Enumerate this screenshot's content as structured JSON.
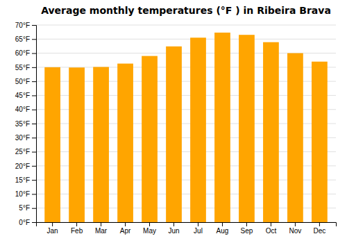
{
  "chart_data": {
    "type": "bar",
    "title": "Average monthly temperatures (°F ) in Ribeira Brava",
    "categories": [
      "Jan",
      "Feb",
      "Mar",
      "Apr",
      "May",
      "Jun",
      "Jul",
      "Aug",
      "Sep",
      "Oct",
      "Nov",
      "Dec"
    ],
    "values": [
      55.0,
      54.9,
      55.1,
      56.3,
      59.0,
      62.4,
      65.5,
      67.3,
      66.5,
      63.9,
      60.0,
      57.0
    ],
    "color": "#FFA500",
    "ylim": [
      0,
      70
    ],
    "yticks": [
      {
        "value": 0,
        "label": "0°F"
      },
      {
        "value": 5,
        "label": "5°F"
      },
      {
        "value": 10,
        "label": "10°F"
      },
      {
        "value": 15,
        "label": "15°F"
      },
      {
        "value": 20,
        "label": "20°F"
      },
      {
        "value": 25,
        "label": "25°F"
      },
      {
        "value": 30,
        "label": "30°F"
      },
      {
        "value": 35,
        "label": "35°F"
      },
      {
        "value": 40,
        "label": "40°F"
      },
      {
        "value": 45,
        "label": "45°F"
      },
      {
        "value": 50,
        "label": "50°F"
      },
      {
        "value": 55,
        "label": "55°F"
      },
      {
        "value": 60,
        "label": "60°F"
      },
      {
        "value": 65,
        "label": "65°F"
      },
      {
        "value": 70,
        "label": "70°F"
      }
    ],
    "grid": true
  }
}
